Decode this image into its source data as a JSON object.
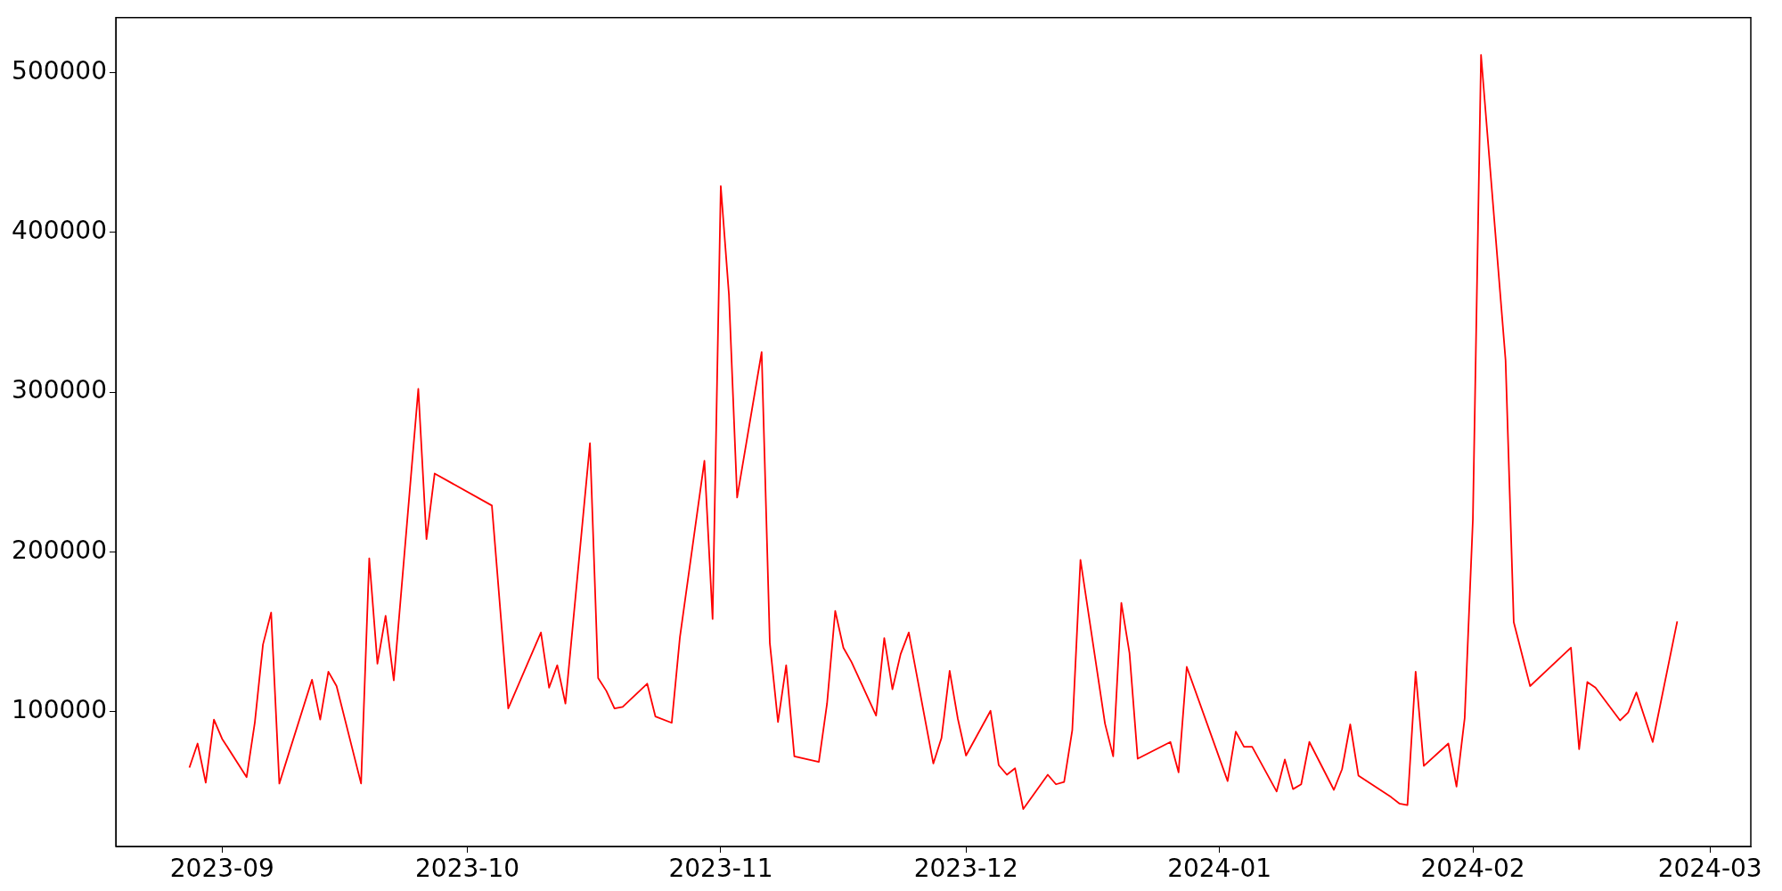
{
  "chart_data": {
    "type": "line",
    "x": [
      "2023-08-28",
      "2023-08-29",
      "2023-08-30",
      "2023-08-31",
      "2023-09-01",
      "2023-09-04",
      "2023-09-05",
      "2023-09-06",
      "2023-09-07",
      "2023-09-08",
      "2023-09-12",
      "2023-09-13",
      "2023-09-14",
      "2023-09-15",
      "2023-09-18",
      "2023-09-19",
      "2023-09-20",
      "2023-09-21",
      "2023-09-22",
      "2023-09-25",
      "2023-09-26",
      "2023-09-27",
      "2023-10-04",
      "2023-10-06",
      "2023-10-10",
      "2023-10-11",
      "2023-10-12",
      "2023-10-13",
      "2023-10-16",
      "2023-10-17",
      "2023-10-18",
      "2023-10-19",
      "2023-10-20",
      "2023-10-23",
      "2023-10-24",
      "2023-10-26",
      "2023-10-27",
      "2023-10-30",
      "2023-10-31",
      "2023-11-01",
      "2023-11-02",
      "2023-11-03",
      "2023-11-06",
      "2023-11-07",
      "2023-11-08",
      "2023-11-09",
      "2023-11-10",
      "2023-11-13",
      "2023-11-14",
      "2023-11-15",
      "2023-11-16",
      "2023-11-17",
      "2023-11-20",
      "2023-11-21",
      "2023-11-22",
      "2023-11-23",
      "2023-11-24",
      "2023-11-27",
      "2023-11-28",
      "2023-11-29",
      "2023-11-30",
      "2023-12-01",
      "2023-12-04",
      "2023-12-05",
      "2023-12-06",
      "2023-12-07",
      "2023-12-08",
      "2023-12-11",
      "2023-12-12",
      "2023-12-13",
      "2023-12-14",
      "2023-12-15",
      "2023-12-18",
      "2023-12-19",
      "2023-12-20",
      "2023-12-21",
      "2023-12-22",
      "2023-12-26",
      "2023-12-27",
      "2023-12-28",
      "2024-01-02",
      "2024-01-03",
      "2024-01-04",
      "2024-01-05",
      "2024-01-08",
      "2024-01-09",
      "2024-01-10",
      "2024-01-11",
      "2024-01-12",
      "2024-01-15",
      "2024-01-16",
      "2024-01-17",
      "2024-01-18",
      "2024-01-22",
      "2024-01-23",
      "2024-01-24",
      "2024-01-25",
      "2024-01-26",
      "2024-01-29",
      "2024-01-30",
      "2024-01-31",
      "2024-02-01",
      "2024-02-02",
      "2024-02-05",
      "2024-02-06",
      "2024-02-08",
      "2024-02-13",
      "2024-02-14",
      "2024-02-15",
      "2024-02-16",
      "2024-02-19",
      "2024-02-20",
      "2024-02-21",
      "2024-02-23",
      "2024-02-26"
    ],
    "series": [
      {
        "color": "#ff0000",
        "values": [
          65000,
          80000,
          55500,
          95000,
          83000,
          59000,
          93000,
          142000,
          162000,
          55000,
          120000,
          95000,
          125000,
          116000,
          55000,
          196000,
          130000,
          160000,
          119500,
          302000,
          208000,
          249000,
          229000,
          102000,
          149500,
          115000,
          129000,
          105000,
          268000,
          121000,
          113000,
          102000,
          103000,
          117500,
          97000,
          93000,
          146500,
          257000,
          158000,
          429000,
          361000,
          234000,
          325000,
          143000,
          93500,
          129000,
          72000,
          68500,
          105000,
          163000,
          140000,
          131000,
          97500,
          146000,
          114000,
          136000,
          149500,
          67500,
          83500,
          125500,
          95500,
          72500,
          100500,
          66500,
          60500,
          64500,
          39000,
          60500,
          54500,
          56000,
          88500,
          195000,
          92500,
          72000,
          168000,
          136500,
          70500,
          81000,
          62000,
          128000,
          56500,
          87500,
          78000,
          78000,
          50000,
          70000,
          51500,
          54500,
          81000,
          51000,
          64000,
          92000,
          60000,
          46500,
          42500,
          41500,
          125000,
          66000,
          80000,
          53000,
          96000,
          220000,
          511000,
          320000,
          156000,
          116000,
          140000,
          76500,
          118500,
          115000,
          94500,
          99500,
          112000,
          81000,
          156500
        ]
      }
    ],
    "xlim": [
      "2023-08-19",
      "2024-03-06"
    ],
    "xticks": [
      "2023-09",
      "2023-10",
      "2023-11",
      "2023-12",
      "2024-01",
      "2024-02",
      "2024-03"
    ],
    "ylim": [
      15600,
      534400
    ],
    "yticks": [
      100000,
      200000,
      300000,
      400000,
      500000
    ],
    "marker": "none",
    "line_style": "solid",
    "legend": false
  }
}
